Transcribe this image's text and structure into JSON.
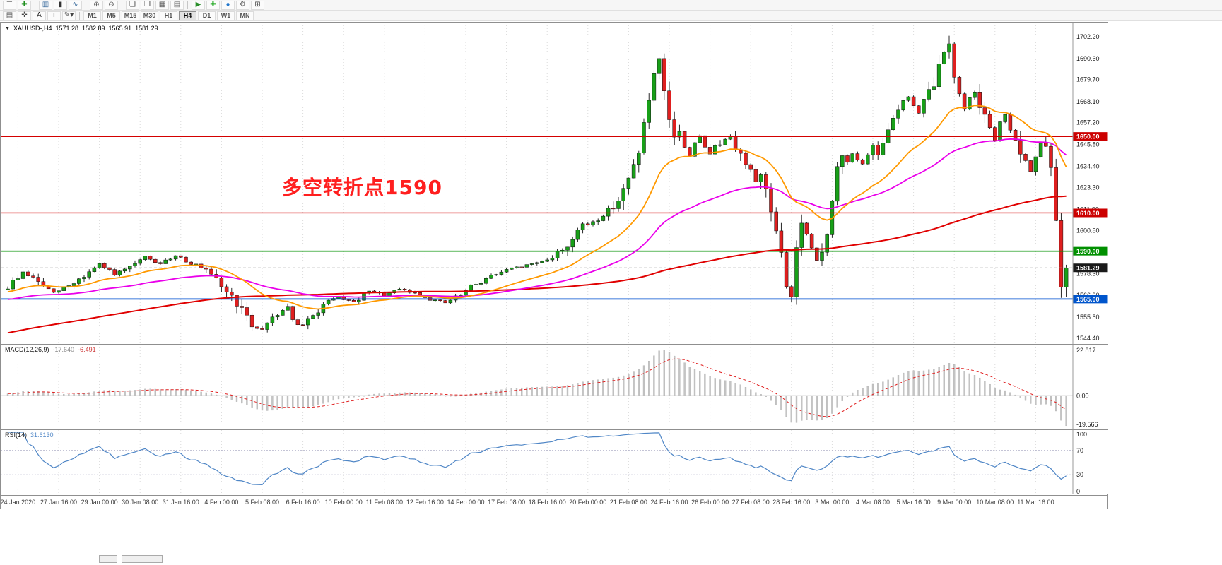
{
  "toolbar": {
    "row1": [
      {
        "name": "menu-icon",
        "glyph": "☰",
        "color": "#555"
      },
      {
        "name": "new-order-icon",
        "glyph": "✚",
        "color": "#1f8f1f"
      },
      {
        "name": "toolbar-separator",
        "glyph": "|"
      },
      {
        "name": "bar-chart-icon",
        "glyph": "▥",
        "color": "#336699"
      },
      {
        "name": "candlestick-chart-icon",
        "glyph": "▮",
        "color": "#333333"
      },
      {
        "name": "line-chart-icon",
        "glyph": "∿",
        "color": "#336699"
      },
      {
        "name": "toolbar-separator",
        "glyph": "|"
      },
      {
        "name": "zoom-in-icon",
        "glyph": "⊕",
        "color": "#444444"
      },
      {
        "name": "zoom-out-icon",
        "glyph": "⊖",
        "color": "#444444"
      },
      {
        "name": "toolbar-separator",
        "glyph": "|"
      },
      {
        "name": "tile-windows-icon",
        "glyph": "❏",
        "color": "#444444"
      },
      {
        "name": "cascade-windows-icon",
        "glyph": "❐",
        "color": "#444444"
      },
      {
        "name": "new-chart-icon",
        "glyph": "▦",
        "color": "#555555"
      },
      {
        "name": "profiles-icon",
        "glyph": "▤",
        "color": "#555555"
      },
      {
        "name": "toolbar-separator",
        "glyph": "|"
      },
      {
        "name": "auto-trading-icon",
        "glyph": "▶",
        "color": "#2a8f2a"
      },
      {
        "name": "add-indicator-icon",
        "glyph": "✚",
        "color": "#13a313"
      },
      {
        "name": "info-icon",
        "glyph": "●",
        "color": "#2277cc"
      },
      {
        "name": "settings-icon",
        "glyph": "⚙",
        "color": "#666666"
      },
      {
        "name": "grid-icon",
        "glyph": "⊞",
        "color": "#444444"
      }
    ],
    "row2": [
      {
        "name": "chart-shift-icon",
        "glyph": "▤",
        "color": "#555555"
      },
      {
        "name": "crosshair-icon",
        "glyph": "✛",
        "color": "#444444"
      },
      {
        "name": "text-label-icon",
        "glyph": "A",
        "color": "#222222"
      },
      {
        "name": "text-box-icon",
        "glyph": "T",
        "color": "#222222",
        "boxed": true
      },
      {
        "name": "draw-tools-icon",
        "glyph": "✎▾",
        "color": "#444444"
      }
    ],
    "timeframes": [
      "M1",
      "M5",
      "M15",
      "M30",
      "H1",
      "H4",
      "D1",
      "W1",
      "MN"
    ],
    "active_timeframe": "H4"
  },
  "chart": {
    "title": "XAUUSD-,H4",
    "symbol": "XAUUSD-",
    "timeframe": "H4",
    "open": "1571.28",
    "high": "1582.89",
    "low": "1565.91",
    "close": "1581.29",
    "annotation": "多空转折点1590",
    "annotation_color": "#ff1f1f",
    "price_ticks": [
      1702.2,
      1690.6,
      1679.7,
      1668.1,
      1657.2,
      1645.8,
      1634.4,
      1623.3,
      1611.9,
      1600.8,
      1589.4,
      1578.3,
      1566.9,
      1555.5,
      1544.4
    ],
    "price_labels": [
      {
        "value": 1650.0,
        "text": "1650.00",
        "bg": "#cc0000"
      },
      {
        "value": 1610.0,
        "text": "1610.00",
        "bg": "#cc0000"
      },
      {
        "value": 1590.0,
        "text": "1590.00",
        "bg": "#009000"
      },
      {
        "value": 1581.29,
        "text": "1581.29",
        "bg": "#1a1a1a"
      },
      {
        "value": 1565.0,
        "text": "1565.00",
        "bg": "#0055cc"
      }
    ],
    "hlines": [
      {
        "value": 1650.0,
        "label": "1650.00",
        "color": "#d40000",
        "width": 1.8
      },
      {
        "value": 1610.0,
        "label": "1610.00",
        "color": "#d40000",
        "width": 1.4
      },
      {
        "value": 1590.0,
        "label": "1590.00",
        "color": "#009000",
        "width": 1.6
      },
      {
        "value": 1581.29,
        "label": "1581.29",
        "color": "#9a9a9a",
        "width": 1,
        "dash": true
      },
      {
        "value": 1565.0,
        "label": "1565.00",
        "color": "#0050d0",
        "width": 1.8
      }
    ],
    "ma_lines": [
      {
        "name": "ma-slow-line",
        "type": "sma",
        "period": 140,
        "color": "#e00000",
        "width": 2
      },
      {
        "name": "ma-mid-line",
        "type": "ema",
        "period": 55,
        "color": "#ea00ea",
        "width": 1.8
      },
      {
        "name": "ma-fast-line",
        "type": "ema",
        "period": 21,
        "color": "#ff9900",
        "width": 1.8
      }
    ],
    "chart_data": {
      "type": "candlestick",
      "symbol": "XAUUSD",
      "timeframe_hours": 4,
      "ylim": [
        1541.5,
        1709.5
      ],
      "num_candles": 209,
      "up_color": "#18a018",
      "down_color": "#df1f1f",
      "x_label_first_index": 2,
      "x_label_step": 8,
      "keyframes": [
        [
          0,
          1571
        ],
        [
          3,
          1579
        ],
        [
          6,
          1574
        ],
        [
          9,
          1568
        ],
        [
          12,
          1572
        ],
        [
          15,
          1577
        ],
        [
          18,
          1583
        ],
        [
          21,
          1578
        ],
        [
          24,
          1581
        ],
        [
          27,
          1587
        ],
        [
          30,
          1583
        ],
        [
          33,
          1588
        ],
        [
          36,
          1584
        ],
        [
          39,
          1579
        ],
        [
          42,
          1572
        ],
        [
          45,
          1563
        ],
        [
          48,
          1551
        ],
        [
          50,
          1549
        ],
        [
          52,
          1556
        ],
        [
          55,
          1561
        ],
        [
          57,
          1550
        ],
        [
          59,
          1553
        ],
        [
          62,
          1562
        ],
        [
          65,
          1566
        ],
        [
          68,
          1563
        ],
        [
          71,
          1569
        ],
        [
          74,
          1567
        ],
        [
          77,
          1570
        ],
        [
          80,
          1568
        ],
        [
          83,
          1565
        ],
        [
          86,
          1563
        ],
        [
          89,
          1567
        ],
        [
          92,
          1573
        ],
        [
          95,
          1577
        ],
        [
          98,
          1580
        ],
        [
          101,
          1582
        ],
        [
          104,
          1584
        ],
        [
          107,
          1587
        ],
        [
          110,
          1593
        ],
        [
          112,
          1601
        ],
        [
          114,
          1604
        ],
        [
          116,
          1607
        ],
        [
          118,
          1611
        ],
        [
          120,
          1617
        ],
        [
          122,
          1627
        ],
        [
          124,
          1643
        ],
        [
          126,
          1669
        ],
        [
          127,
          1681
        ],
        [
          128,
          1689
        ],
        [
          129,
          1672
        ],
        [
          130,
          1658
        ],
        [
          131,
          1650
        ],
        [
          132,
          1653
        ],
        [
          133,
          1644
        ],
        [
          134,
          1640
        ],
        [
          135,
          1647
        ],
        [
          136,
          1650
        ],
        [
          137,
          1644
        ],
        [
          138,
          1641
        ],
        [
          139,
          1646
        ],
        [
          140,
          1644
        ],
        [
          141,
          1649
        ],
        [
          142,
          1651
        ],
        [
          143,
          1645
        ],
        [
          144,
          1640
        ],
        [
          145,
          1636
        ],
        [
          146,
          1631
        ],
        [
          147,
          1628
        ],
        [
          148,
          1630
        ],
        [
          149,
          1622
        ],
        [
          150,
          1612
        ],
        [
          151,
          1600
        ],
        [
          152,
          1588
        ],
        [
          153,
          1572
        ],
        [
          154,
          1566
        ],
        [
          155,
          1592
        ],
        [
          156,
          1604
        ],
        [
          157,
          1598
        ],
        [
          158,
          1590
        ],
        [
          159,
          1585
        ],
        [
          160,
          1590
        ],
        [
          161,
          1600
        ],
        [
          162,
          1615
        ],
        [
          163,
          1633
        ],
        [
          164,
          1640
        ],
        [
          165,
          1636
        ],
        [
          166,
          1642
        ],
        [
          167,
          1638
        ],
        [
          168,
          1635
        ],
        [
          169,
          1640
        ],
        [
          170,
          1644
        ],
        [
          171,
          1641
        ],
        [
          172,
          1648
        ],
        [
          173,
          1655
        ],
        [
          174,
          1660
        ],
        [
          175,
          1665
        ],
        [
          176,
          1668
        ],
        [
          177,
          1671
        ],
        [
          178,
          1666
        ],
        [
          179,
          1662
        ],
        [
          180,
          1668
        ],
        [
          181,
          1673
        ],
        [
          182,
          1677
        ],
        [
          183,
          1687
        ],
        [
          184,
          1694
        ],
        [
          185,
          1700
        ],
        [
          186,
          1682
        ],
        [
          187,
          1671
        ],
        [
          188,
          1665
        ],
        [
          189,
          1670
        ],
        [
          190,
          1674
        ],
        [
          191,
          1667
        ],
        [
          192,
          1660
        ],
        [
          193,
          1653
        ],
        [
          194,
          1648
        ],
        [
          195,
          1657
        ],
        [
          196,
          1662
        ],
        [
          197,
          1654
        ],
        [
          198,
          1646
        ],
        [
          199,
          1641
        ],
        [
          200,
          1636
        ],
        [
          201,
          1632
        ],
        [
          202,
          1640
        ],
        [
          203,
          1647
        ],
        [
          204,
          1644
        ],
        [
          205,
          1633
        ],
        [
          206,
          1606
        ],
        [
          207,
          1571.3
        ],
        [
          208,
          1581.29
        ]
      ],
      "x_labels": [
        "24 Jan 2020",
        "27 Jan 16:00",
        "29 Jan 00:00",
        "30 Jan 08:00",
        "31 Jan 16:00",
        "4 Feb 00:00",
        "5 Feb 08:00",
        "6 Feb 16:00",
        "10 Feb 00:00",
        "11 Feb 08:00",
        "12 Feb 16:00",
        "14 Feb 00:00",
        "17 Feb 08:00",
        "18 Feb 16:00",
        "20 Feb 00:00",
        "21 Feb 08:00",
        "24 Feb 16:00",
        "26 Feb 00:00",
        "27 Feb 08:00",
        "28 Feb 16:00",
        "3 Mar 00:00",
        "4 Mar 08:00",
        "5 Mar 16:00",
        "9 Mar 00:00",
        "10 Mar 08:00",
        "11 Mar 16:00"
      ]
    }
  },
  "indicators": {
    "macd": {
      "label": "MACD(12,26,9)",
      "value_main": "-17.640",
      "value_signal": "-6.491",
      "axis": {
        "max": "22.817",
        "zero": "0.00",
        "min": "-19.566"
      },
      "histogram_color": "#c4c4c4",
      "signal_color": "#e02020",
      "params": {
        "fast": 12,
        "slow": 26,
        "signal": 9
      }
    },
    "rsi": {
      "label": "RSI(14)",
      "value": "31.6130",
      "period": 14,
      "levels": [
        100,
        70,
        30,
        0
      ],
      "line_color": "#4f86c6"
    }
  }
}
